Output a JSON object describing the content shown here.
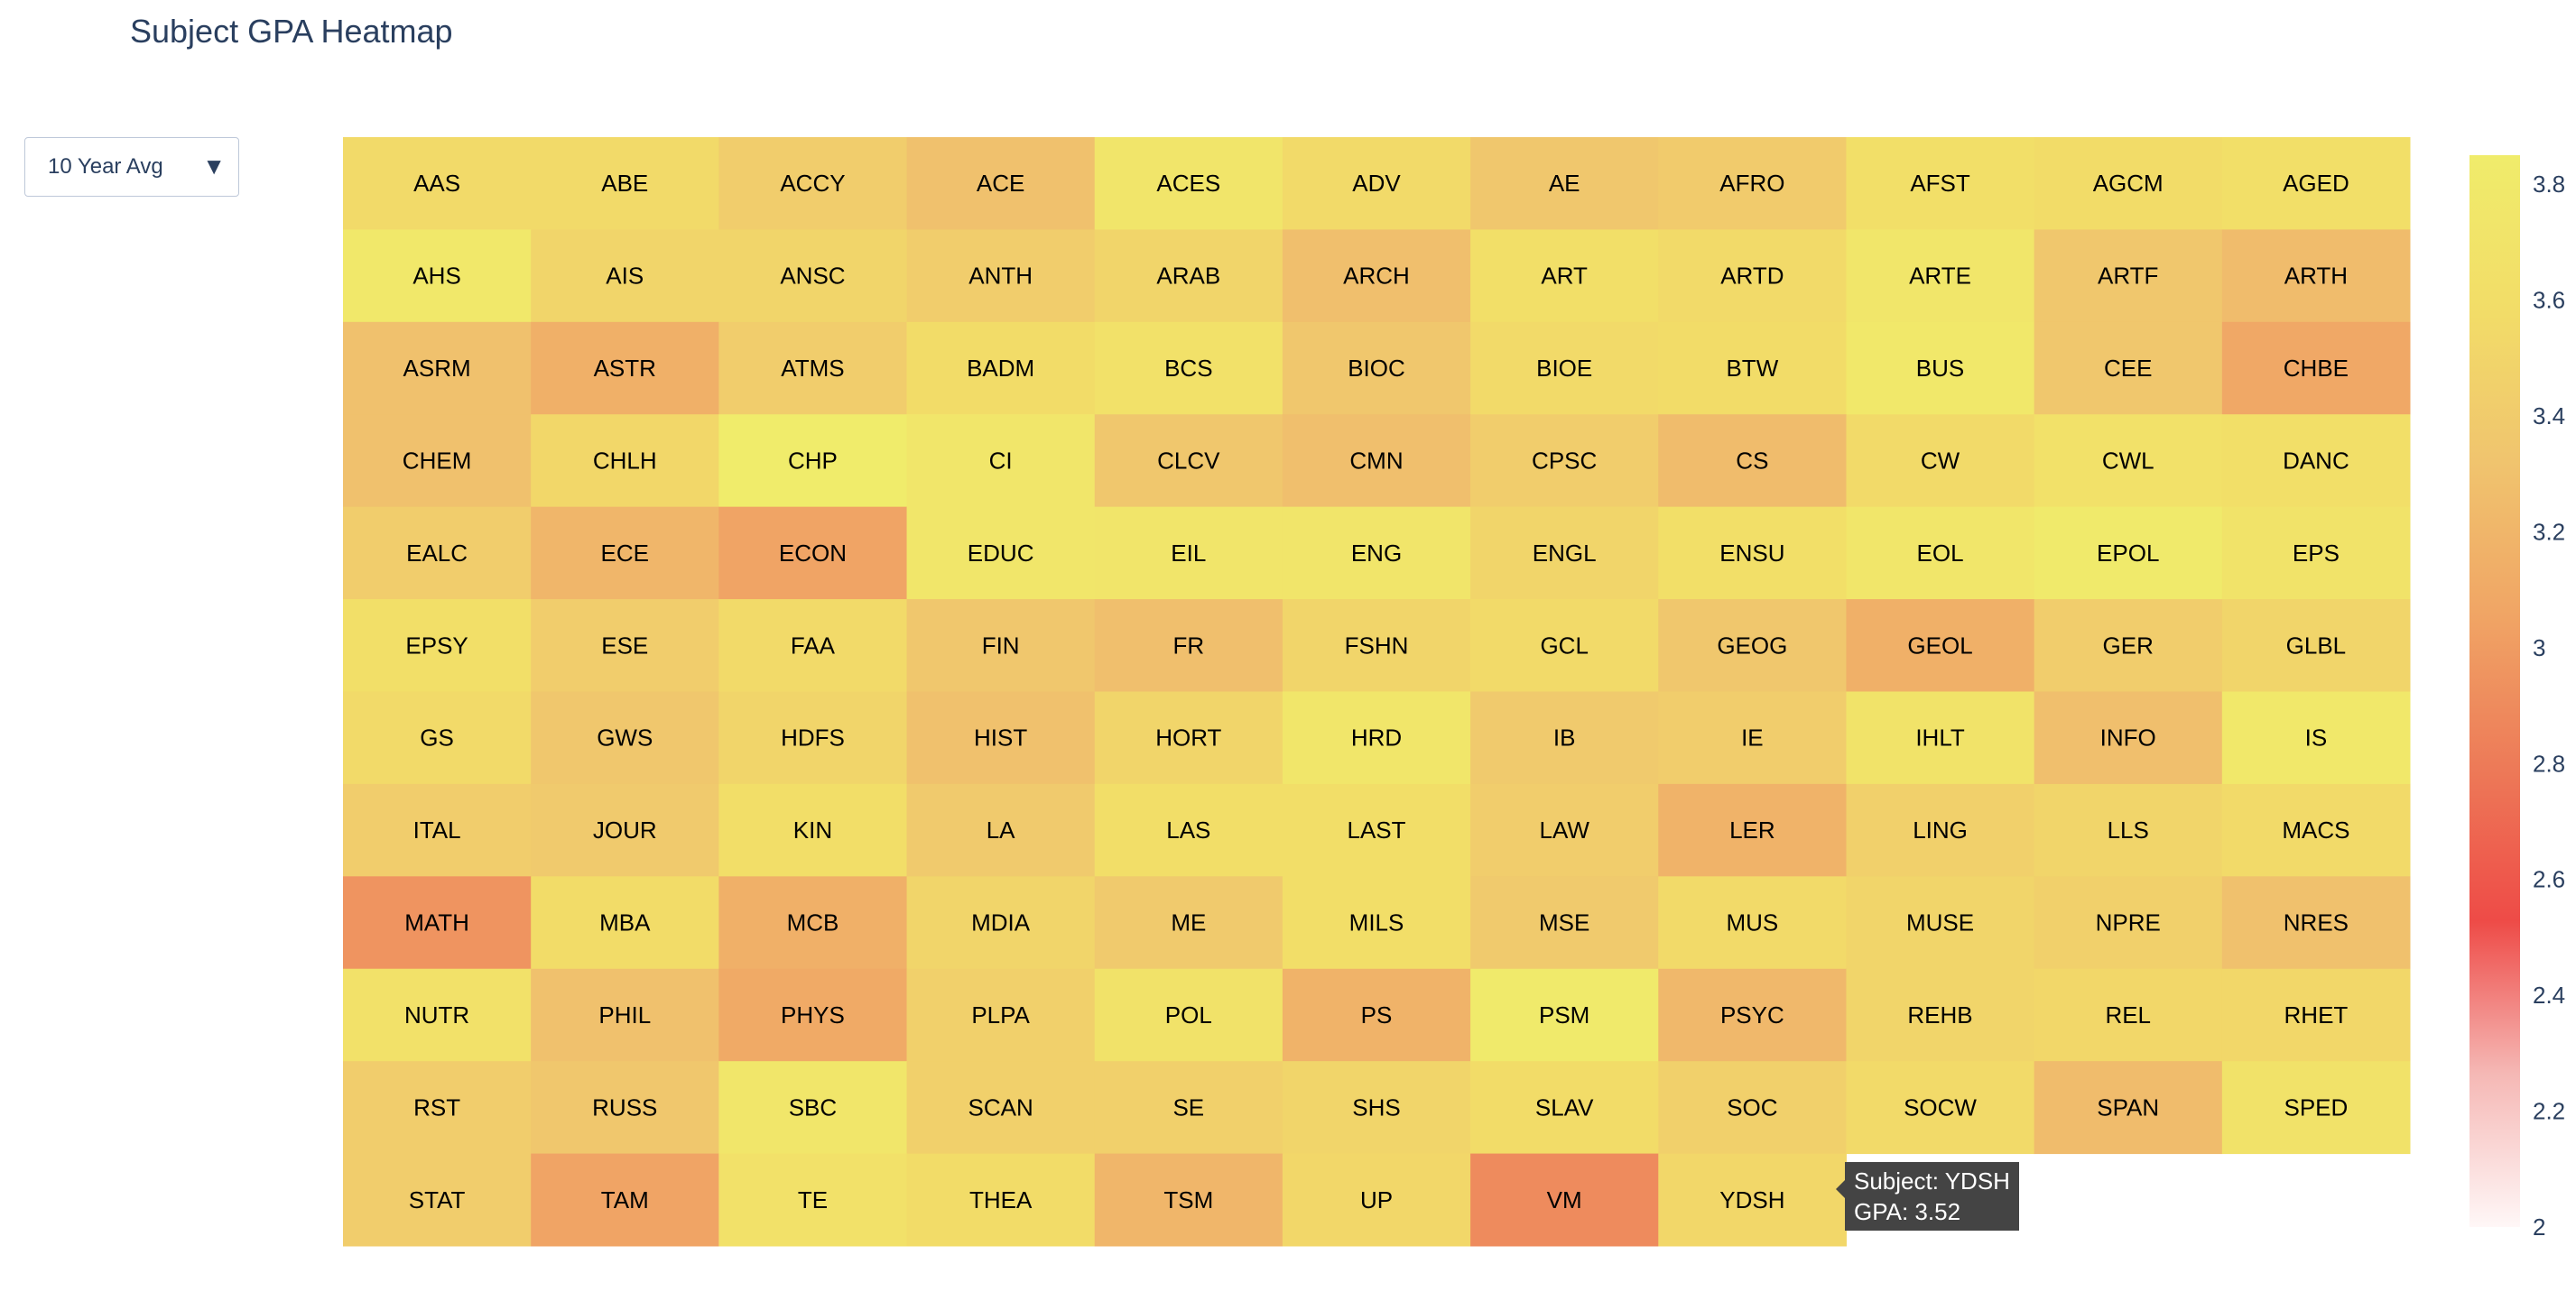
{
  "title": "Subject GPA Heatmap",
  "dropdown": {
    "selected": "10 Year Avg",
    "arrow_icon": "triangle-down-icon"
  },
  "tooltip": {
    "subject_line": "Subject: YDSH",
    "gpa_line": "GPA: 3.52"
  },
  "chart_data": {
    "type": "heatmap",
    "title": "Subject GPA Heatmap",
    "columns": 11,
    "rows": 12,
    "zrange": [
      2,
      3.85
    ],
    "colorscale": [
      "#fff7f7",
      "#f5b8b5",
      "#ee4b47",
      "#ed7a58",
      "#f0a565",
      "#f0c46e",
      "#f2dd68",
      "#f0ec6b"
    ],
    "colorbar_ticks": [
      2,
      2.2,
      2.4,
      2.6,
      2.8,
      3,
      3.2,
      3.4,
      3.6,
      3.8
    ],
    "cells": [
      {
        "subject": "AAS",
        "gpa": 3.55
      },
      {
        "subject": "ABE",
        "gpa": 3.55
      },
      {
        "subject": "ACCY",
        "gpa": 3.42
      },
      {
        "subject": "ACE",
        "gpa": 3.3
      },
      {
        "subject": "ACES",
        "gpa": 3.72
      },
      {
        "subject": "ADV",
        "gpa": 3.55
      },
      {
        "subject": "AE",
        "gpa": 3.35
      },
      {
        "subject": "AFRO",
        "gpa": 3.4
      },
      {
        "subject": "AFST",
        "gpa": 3.62
      },
      {
        "subject": "AGCM",
        "gpa": 3.58
      },
      {
        "subject": "AGED",
        "gpa": 3.62
      },
      {
        "subject": "AHS",
        "gpa": 3.78
      },
      {
        "subject": "AIS",
        "gpa": 3.5
      },
      {
        "subject": "ANSC",
        "gpa": 3.5
      },
      {
        "subject": "ANTH",
        "gpa": 3.42
      },
      {
        "subject": "ARAB",
        "gpa": 3.5
      },
      {
        "subject": "ARCH",
        "gpa": 3.28
      },
      {
        "subject": "ART",
        "gpa": 3.62
      },
      {
        "subject": "ARTD",
        "gpa": 3.55
      },
      {
        "subject": "ARTE",
        "gpa": 3.75
      },
      {
        "subject": "ARTF",
        "gpa": 3.35
      },
      {
        "subject": "ARTH",
        "gpa": 3.25
      },
      {
        "subject": "ASRM",
        "gpa": 3.3
      },
      {
        "subject": "ASTR",
        "gpa": 3.15
      },
      {
        "subject": "ATMS",
        "gpa": 3.42
      },
      {
        "subject": "BADM",
        "gpa": 3.58
      },
      {
        "subject": "BCS",
        "gpa": 3.65
      },
      {
        "subject": "BIOC",
        "gpa": 3.35
      },
      {
        "subject": "BIOE",
        "gpa": 3.55
      },
      {
        "subject": "BTW",
        "gpa": 3.58
      },
      {
        "subject": "BUS",
        "gpa": 3.78
      },
      {
        "subject": "CEE",
        "gpa": 3.35
      },
      {
        "subject": "CHBE",
        "gpa": 3.08
      },
      {
        "subject": "CHEM",
        "gpa": 3.3
      },
      {
        "subject": "CHLH",
        "gpa": 3.52
      },
      {
        "subject": "CHP",
        "gpa": 3.85
      },
      {
        "subject": "CI",
        "gpa": 3.75
      },
      {
        "subject": "CLCV",
        "gpa": 3.35
      },
      {
        "subject": "CMN",
        "gpa": 3.28
      },
      {
        "subject": "CPSC",
        "gpa": 3.42
      },
      {
        "subject": "CS",
        "gpa": 3.25
      },
      {
        "subject": "CW",
        "gpa": 3.55
      },
      {
        "subject": "CWL",
        "gpa": 3.65
      },
      {
        "subject": "DANC",
        "gpa": 3.62
      },
      {
        "subject": "EALC",
        "gpa": 3.42
      },
      {
        "subject": "ECE",
        "gpa": 3.2
      },
      {
        "subject": "ECON",
        "gpa": 3.05
      },
      {
        "subject": "EDUC",
        "gpa": 3.75
      },
      {
        "subject": "EIL",
        "gpa": 3.72
      },
      {
        "subject": "ENG",
        "gpa": 3.72
      },
      {
        "subject": "ENGL",
        "gpa": 3.5
      },
      {
        "subject": "ENSU",
        "gpa": 3.62
      },
      {
        "subject": "EOL",
        "gpa": 3.75
      },
      {
        "subject": "EPOL",
        "gpa": 3.82
      },
      {
        "subject": "EPS",
        "gpa": 3.7
      },
      {
        "subject": "EPSY",
        "gpa": 3.62
      },
      {
        "subject": "ESE",
        "gpa": 3.42
      },
      {
        "subject": "FAA",
        "gpa": 3.55
      },
      {
        "subject": "FIN",
        "gpa": 3.35
      },
      {
        "subject": "FR",
        "gpa": 3.28
      },
      {
        "subject": "FSHN",
        "gpa": 3.5
      },
      {
        "subject": "GCL",
        "gpa": 3.55
      },
      {
        "subject": "GEOG",
        "gpa": 3.35
      },
      {
        "subject": "GEOL",
        "gpa": 3.15
      },
      {
        "subject": "GER",
        "gpa": 3.42
      },
      {
        "subject": "GLBL",
        "gpa": 3.5
      },
      {
        "subject": "GS",
        "gpa": 3.55
      },
      {
        "subject": "GWS",
        "gpa": 3.35
      },
      {
        "subject": "HDFS",
        "gpa": 3.5
      },
      {
        "subject": "HIST",
        "gpa": 3.3
      },
      {
        "subject": "HORT",
        "gpa": 3.5
      },
      {
        "subject": "HRD",
        "gpa": 3.75
      },
      {
        "subject": "IB",
        "gpa": 3.38
      },
      {
        "subject": "IE",
        "gpa": 3.42
      },
      {
        "subject": "IHLT",
        "gpa": 3.7
      },
      {
        "subject": "INFO",
        "gpa": 3.28
      },
      {
        "subject": "IS",
        "gpa": 3.78
      },
      {
        "subject": "ITAL",
        "gpa": 3.42
      },
      {
        "subject": "JOUR",
        "gpa": 3.38
      },
      {
        "subject": "KIN",
        "gpa": 3.6
      },
      {
        "subject": "LA",
        "gpa": 3.38
      },
      {
        "subject": "LAS",
        "gpa": 3.6
      },
      {
        "subject": "LAST",
        "gpa": 3.6
      },
      {
        "subject": "LAW",
        "gpa": 3.42
      },
      {
        "subject": "LER",
        "gpa": 3.18
      },
      {
        "subject": "LING",
        "gpa": 3.45
      },
      {
        "subject": "LLS",
        "gpa": 3.5
      },
      {
        "subject": "MACS",
        "gpa": 3.55
      },
      {
        "subject": "MATH",
        "gpa": 2.95
      },
      {
        "subject": "MBA",
        "gpa": 3.58
      },
      {
        "subject": "MCB",
        "gpa": 3.15
      },
      {
        "subject": "MDIA",
        "gpa": 3.5
      },
      {
        "subject": "ME",
        "gpa": 3.38
      },
      {
        "subject": "MILS",
        "gpa": 3.6
      },
      {
        "subject": "MSE",
        "gpa": 3.38
      },
      {
        "subject": "MUS",
        "gpa": 3.55
      },
      {
        "subject": "MUSE",
        "gpa": 3.5
      },
      {
        "subject": "NPRE",
        "gpa": 3.45
      },
      {
        "subject": "NRES",
        "gpa": 3.3
      },
      {
        "subject": "NUTR",
        "gpa": 3.65
      },
      {
        "subject": "PHIL",
        "gpa": 3.3
      },
      {
        "subject": "PHYS",
        "gpa": 3.1
      },
      {
        "subject": "PLPA",
        "gpa": 3.45
      },
      {
        "subject": "POL",
        "gpa": 3.68
      },
      {
        "subject": "PS",
        "gpa": 3.18
      },
      {
        "subject": "PSM",
        "gpa": 3.82
      },
      {
        "subject": "PSYC",
        "gpa": 3.22
      },
      {
        "subject": "REHB",
        "gpa": 3.5
      },
      {
        "subject": "REL",
        "gpa": 3.52
      },
      {
        "subject": "RHET",
        "gpa": 3.52
      },
      {
        "subject": "RST",
        "gpa": 3.42
      },
      {
        "subject": "RUSS",
        "gpa": 3.35
      },
      {
        "subject": "SBC",
        "gpa": 3.75
      },
      {
        "subject": "SCAN",
        "gpa": 3.45
      },
      {
        "subject": "SE",
        "gpa": 3.45
      },
      {
        "subject": "SHS",
        "gpa": 3.5
      },
      {
        "subject": "SLAV",
        "gpa": 3.58
      },
      {
        "subject": "SOC",
        "gpa": 3.45
      },
      {
        "subject": "SOCW",
        "gpa": 3.55
      },
      {
        "subject": "SPAN",
        "gpa": 3.25
      },
      {
        "subject": "SPED",
        "gpa": 3.68
      },
      {
        "subject": "STAT",
        "gpa": 3.42
      },
      {
        "subject": "TAM",
        "gpa": 3.05
      },
      {
        "subject": "TE",
        "gpa": 3.65
      },
      {
        "subject": "THEA",
        "gpa": 3.58
      },
      {
        "subject": "TSM",
        "gpa": 3.2
      },
      {
        "subject": "UP",
        "gpa": 3.52
      },
      {
        "subject": "VM",
        "gpa": 2.9
      },
      {
        "subject": "YDSH",
        "gpa": 3.52
      }
    ]
  }
}
